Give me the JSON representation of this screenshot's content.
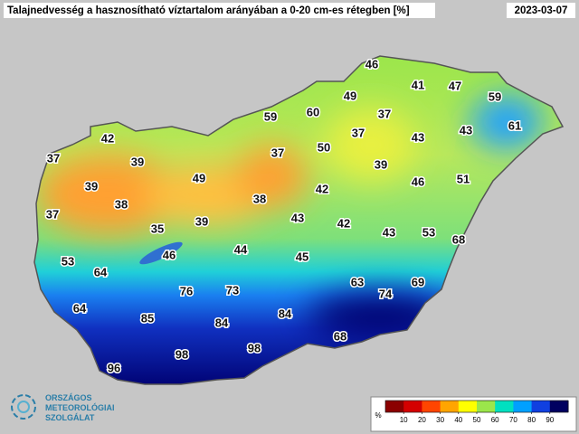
{
  "title": "Talajnedvesség a hasznosítható víztartalom arányában a 0-20 cm-es rétegben [%]",
  "date": "2023-03-07",
  "logo": [
    "ORSZÁGOS",
    "METEOROLÓGIAI",
    "SZOLGÁLAT"
  ],
  "colorbar": {
    "unit": "%",
    "lim": [
      0,
      100
    ],
    "ticks": [
      10,
      20,
      30,
      40,
      50,
      60,
      70,
      80,
      90
    ],
    "colors": [
      "#8b0000",
      "#d40000",
      "#ff4500",
      "#ffa500",
      "#ffff00",
      "#9be64b",
      "#00e0c0",
      "#00a0ff",
      "#1040e0",
      "#000060"
    ]
  },
  "stations": [
    46,
    41,
    47,
    49,
    59,
    59,
    60,
    37,
    61,
    42,
    37,
    43,
    43,
    50,
    37,
    39,
    37,
    39,
    39,
    49,
    46,
    51,
    42,
    38,
    38,
    37,
    39,
    43,
    42,
    35,
    43,
    53,
    68,
    46,
    44,
    45,
    53,
    64,
    63,
    74,
    69,
    76,
    73,
    64,
    85,
    84,
    84,
    68,
    98,
    98,
    96
  ]
}
